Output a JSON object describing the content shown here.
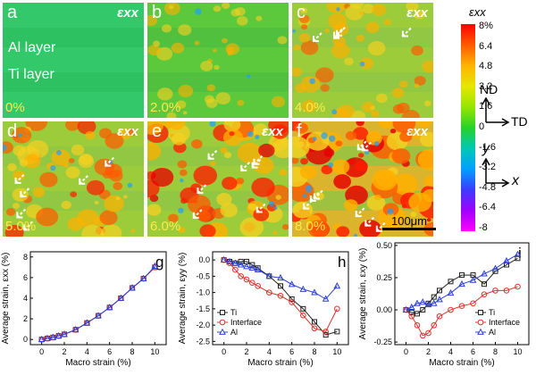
{
  "maps": [
    {
      "letter": "a",
      "strain": "0%",
      "component": "εxx",
      "level": 0.0
    },
    {
      "letter": "b",
      "strain": "2.0%",
      "component": "",
      "level": 0.2
    },
    {
      "letter": "c",
      "strain": "4.0%",
      "component": "εxx",
      "level": 0.38
    },
    {
      "letter": "d",
      "strain": "5.0%",
      "component": "εxx",
      "level": 0.5
    },
    {
      "letter": "e",
      "strain": "6.0%",
      "component": "εxx",
      "level": 0.62
    },
    {
      "letter": "f",
      "strain": "8.0%",
      "component": "εxx",
      "level": 0.8
    }
  ],
  "layer_labels": {
    "al": "Al layer",
    "ti": "Ti layer"
  },
  "colorbar": {
    "title": "εxx",
    "ticks": [
      "8%",
      "6.4",
      "4.8",
      "3.2",
      "1.6",
      "0",
      "-1.6",
      "-3.2",
      "-4.8",
      "-6.4",
      "-8"
    ],
    "colors": [
      "#ff0000",
      "#ff5a00",
      "#ffb400",
      "#e6e600",
      "#96e600",
      "#28d228",
      "#00c8b4",
      "#00a0ff",
      "#3c3cff",
      "#a000ff",
      "#ff00ff"
    ]
  },
  "axes_ref": {
    "nd": "ND",
    "td": "TD",
    "y": "y",
    "x": "x"
  },
  "scale_bar": "100μm",
  "chart_data": [
    {
      "type": "line",
      "panel": "g",
      "xlabel": "Macro strain (%)",
      "ylabel": "Average strain, εxx (%)",
      "xlim": [
        -1,
        11
      ],
      "ylim": [
        -0.5,
        8.5
      ],
      "xticks": [
        "0",
        "2",
        "4",
        "6",
        "8",
        "10"
      ],
      "yticks": [
        "0",
        "2",
        "4",
        "6",
        "8"
      ],
      "legend": "none",
      "x": [
        0,
        0.5,
        1,
        1.5,
        2,
        3,
        4,
        5,
        6,
        7,
        8,
        9,
        10
      ],
      "series": [
        {
          "name": "",
          "marker": "square",
          "color": "#222222",
          "values": [
            0,
            0.1,
            0.2,
            0.35,
            0.5,
            0.95,
            1.6,
            2.3,
            3.1,
            4.0,
            5.0,
            5.9,
            7.0
          ]
        },
        {
          "name": "",
          "marker": "circle",
          "color": "#e0312b",
          "values": [
            0,
            0.1,
            0.2,
            0.35,
            0.5,
            0.95,
            1.6,
            2.3,
            3.1,
            4.0,
            5.0,
            5.9,
            7.0
          ]
        },
        {
          "name": "",
          "marker": "triangle",
          "color": "#2a3fd6",
          "values": [
            0,
            0.1,
            0.2,
            0.35,
            0.5,
            0.95,
            1.6,
            2.3,
            3.1,
            4.0,
            5.0,
            5.9,
            7.1
          ]
        }
      ]
    },
    {
      "type": "line",
      "panel": "h",
      "xlabel": "Macro strain (%)",
      "ylabel": "Average strain, εyy (%)",
      "xlim": [
        -1,
        11
      ],
      "ylim": [
        -2.6,
        0.25
      ],
      "xticks": [
        "0",
        "2",
        "4",
        "6",
        "8",
        "10"
      ],
      "yticks": [
        "0.0",
        "-0.5",
        "-1.0",
        "-1.5",
        "-2.0",
        "-2.5"
      ],
      "legend": "bottom-left",
      "x": [
        0,
        0.5,
        1,
        1.5,
        2,
        2.5,
        3,
        4,
        5,
        6,
        7,
        8,
        9,
        10
      ],
      "series": [
        {
          "name": "Ti",
          "marker": "square",
          "color": "#222222",
          "values": [
            0,
            -0.05,
            -0.1,
            -0.05,
            -0.05,
            -0.15,
            -0.25,
            -0.5,
            -0.8,
            -1.2,
            -1.5,
            -1.9,
            -2.3,
            -2.2
          ]
        },
        {
          "name": "Interface",
          "marker": "circle",
          "color": "#e0312b",
          "values": [
            0,
            -0.1,
            -0.3,
            -0.5,
            -0.6,
            -0.7,
            -0.8,
            -1.0,
            -1.1,
            -1.3,
            -1.7,
            -2.1,
            -2.2,
            -1.5
          ]
        },
        {
          "name": "Al",
          "marker": "triangle",
          "color": "#2a3fd6",
          "values": [
            0,
            -0.05,
            -0.1,
            -0.15,
            -0.2,
            -0.25,
            -0.3,
            -0.5,
            -0.55,
            -0.75,
            -0.9,
            -1.0,
            -1.2,
            -0.8
          ]
        }
      ]
    },
    {
      "type": "line",
      "panel": "i",
      "xlabel": "Macro strain (%)",
      "ylabel": "Average strain, εxy (%)",
      "xlim": [
        -1,
        11
      ],
      "ylim": [
        -0.27,
        0.52
      ],
      "xticks": [
        "0",
        "2",
        "4",
        "6",
        "8",
        "10"
      ],
      "yticks": [
        "0.50",
        "0.25",
        "0.00",
        "-0.25"
      ],
      "legend": "bottom-right",
      "x": [
        0,
        0.5,
        1,
        1.5,
        2,
        2.5,
        3,
        4,
        5,
        6,
        7,
        8,
        9,
        10
      ],
      "series": [
        {
          "name": "Ti",
          "marker": "square",
          "color": "#222222",
          "values": [
            0,
            -0.02,
            -0.03,
            0.0,
            0.05,
            0.1,
            0.15,
            0.22,
            0.27,
            0.27,
            0.2,
            0.3,
            0.35,
            0.4
          ]
        },
        {
          "name": "Interface",
          "marker": "circle",
          "color": "#e0312b",
          "values": [
            0,
            -0.05,
            -0.12,
            -0.2,
            -0.18,
            -0.12,
            -0.05,
            0.0,
            0.03,
            0.05,
            0.12,
            0.15,
            0.15,
            0.18
          ]
        },
        {
          "name": "Al",
          "marker": "triangle",
          "color": "#2a3fd6",
          "values": [
            0,
            0.02,
            0.05,
            0.06,
            0.04,
            0.05,
            0.08,
            0.13,
            0.2,
            0.23,
            0.28,
            0.32,
            0.38,
            0.43
          ]
        }
      ]
    }
  ]
}
